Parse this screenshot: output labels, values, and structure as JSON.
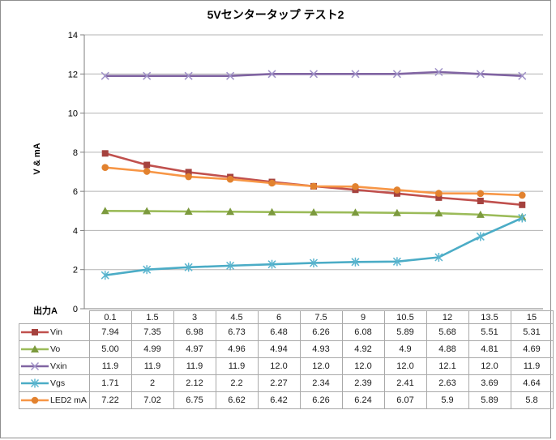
{
  "title": "5Vセンタータップ テスト2",
  "y_axis_title": "V & mA",
  "x_axis_label": "出力A",
  "chart_data": {
    "type": "line",
    "title": "5Vセンタータップ テスト2",
    "xlabel": "出力A",
    "ylabel": "V & mA",
    "ylim": [
      0,
      14
    ],
    "yticks": [
      0,
      2,
      4,
      6,
      8,
      10,
      12,
      14
    ],
    "grid": true,
    "legend_position": "data-table-left",
    "categories": [
      "0.1",
      "1.5",
      "3",
      "4.5",
      "6",
      "7.5",
      "9",
      "10.5",
      "12",
      "13.5",
      "15"
    ],
    "series": [
      {
        "name": "Vin",
        "marker": "square",
        "color": "#C0504D",
        "marker_color": "#A5423E",
        "values": [
          7.94,
          7.35,
          6.98,
          6.73,
          6.48,
          6.26,
          6.08,
          5.89,
          5.68,
          5.51,
          5.31
        ],
        "display": [
          "7.94",
          "7.35",
          "6.98",
          "6.73",
          "6.48",
          "6.26",
          "6.08",
          "5.89",
          "5.68",
          "5.51",
          "5.31"
        ]
      },
      {
        "name": "Vo",
        "marker": "triangle",
        "color": "#9BBB59",
        "marker_color": "#7C9A3E",
        "values": [
          5.0,
          4.99,
          4.97,
          4.96,
          4.94,
          4.93,
          4.92,
          4.9,
          4.88,
          4.81,
          4.69
        ],
        "display": [
          "5.00",
          "4.99",
          "4.97",
          "4.96",
          "4.94",
          "4.93",
          "4.92",
          "4.9",
          "4.88",
          "4.81",
          "4.69"
        ]
      },
      {
        "name": "Vxin",
        "marker": "x",
        "color": "#8064A2",
        "marker_color": "#A092C8",
        "values": [
          11.9,
          11.9,
          11.9,
          11.9,
          12.0,
          12.0,
          12.0,
          12.0,
          12.1,
          12.0,
          11.9
        ],
        "display": [
          "11.9",
          "11.9",
          "11.9",
          "11.9",
          "12.0",
          "12.0",
          "12.0",
          "12.0",
          "12.1",
          "12.0",
          "11.9"
        ]
      },
      {
        "name": "Vgs",
        "marker": "asterisk",
        "color": "#4BACC6",
        "marker_color": "#5BB5CF",
        "values": [
          1.71,
          2,
          2.12,
          2.2,
          2.27,
          2.34,
          2.39,
          2.41,
          2.63,
          3.69,
          4.64
        ],
        "display": [
          "1.71",
          "2",
          "2.12",
          "2.2",
          "2.27",
          "2.34",
          "2.39",
          "2.41",
          "2.63",
          "3.69",
          "4.64"
        ]
      },
      {
        "name": "LED2 mA",
        "marker": "circle",
        "color": "#F79646",
        "marker_color": "#E2822F",
        "values": [
          7.22,
          7.02,
          6.75,
          6.62,
          6.42,
          6.26,
          6.24,
          6.07,
          5.9,
          5.89,
          5.8
        ],
        "display": [
          "7.22",
          "7.02",
          "6.75",
          "6.62",
          "6.42",
          "6.26",
          "6.24",
          "6.07",
          "5.9",
          "5.89",
          "5.8"
        ]
      }
    ],
    "colors": {
      "gridline": "#b3b3b3",
      "axis": "#7f7f7f",
      "table_border": "#a9a9a9",
      "frame_border": "#8f8f8f",
      "text": "#000000"
    }
  }
}
